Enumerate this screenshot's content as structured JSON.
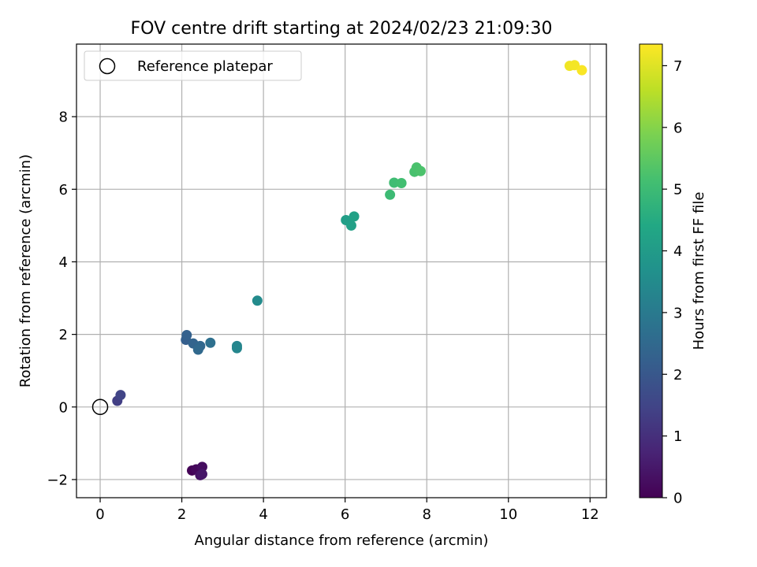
{
  "chart_data": {
    "type": "scatter",
    "title": "FOV centre drift starting at 2024/02/23 21:09:30",
    "xlabel": "Angular distance from reference (arcmin)",
    "ylabel": "Rotation from reference (arcmin)",
    "xlim": [
      -0.58,
      12.4
    ],
    "ylim": [
      -2.5,
      10.0
    ],
    "xticks": [
      0,
      2,
      4,
      6,
      8,
      10,
      12
    ],
    "yticks": [
      -2,
      0,
      2,
      4,
      6,
      8
    ],
    "grid": true,
    "legend": {
      "position": "top-left",
      "entries": [
        "Reference platepar"
      ]
    },
    "reference_point": {
      "x": 0,
      "y": 0,
      "label": "Reference platepar"
    },
    "colorbar": {
      "label": "Hours from first FF file",
      "range": [
        0,
        7.35
      ],
      "ticks": [
        0,
        1,
        2,
        3,
        4,
        5,
        6,
        7
      ],
      "colormap": "viridis"
    },
    "points": [
      {
        "x": 2.25,
        "y": -1.75,
        "c": 0.05
      },
      {
        "x": 2.35,
        "y": -1.72,
        "c": 0.15
      },
      {
        "x": 2.5,
        "y": -1.65,
        "c": 0.25
      },
      {
        "x": 2.45,
        "y": -1.88,
        "c": 0.35
      },
      {
        "x": 2.5,
        "y": -1.85,
        "c": 0.45
      },
      {
        "x": 0.42,
        "y": 0.17,
        "c": 1.35
      },
      {
        "x": 0.5,
        "y": 0.33,
        "c": 1.5
      },
      {
        "x": 2.1,
        "y": 1.85,
        "c": 2.2
      },
      {
        "x": 2.12,
        "y": 1.98,
        "c": 2.25
      },
      {
        "x": 2.28,
        "y": 1.75,
        "c": 2.35
      },
      {
        "x": 2.45,
        "y": 1.68,
        "c": 2.45
      },
      {
        "x": 2.4,
        "y": 1.58,
        "c": 2.5
      },
      {
        "x": 2.7,
        "y": 1.77,
        "c": 2.7
      },
      {
        "x": 3.35,
        "y": 1.68,
        "c": 3.3
      },
      {
        "x": 3.35,
        "y": 1.62,
        "c": 3.35
      },
      {
        "x": 3.85,
        "y": 2.93,
        "c": 3.5
      },
      {
        "x": 6.02,
        "y": 5.15,
        "c": 4.1
      },
      {
        "x": 6.15,
        "y": 5.0,
        "c": 4.15
      },
      {
        "x": 6.22,
        "y": 5.25,
        "c": 4.2
      },
      {
        "x": 7.1,
        "y": 5.85,
        "c": 5.0
      },
      {
        "x": 7.2,
        "y": 6.18,
        "c": 5.05
      },
      {
        "x": 7.38,
        "y": 6.17,
        "c": 5.1
      },
      {
        "x": 7.7,
        "y": 6.48,
        "c": 5.2
      },
      {
        "x": 7.75,
        "y": 6.6,
        "c": 5.22
      },
      {
        "x": 7.85,
        "y": 6.5,
        "c": 5.25
      },
      {
        "x": 11.5,
        "y": 9.4,
        "c": 7.2
      },
      {
        "x": 11.62,
        "y": 9.42,
        "c": 7.25
      },
      {
        "x": 11.8,
        "y": 9.28,
        "c": 7.3
      }
    ]
  }
}
